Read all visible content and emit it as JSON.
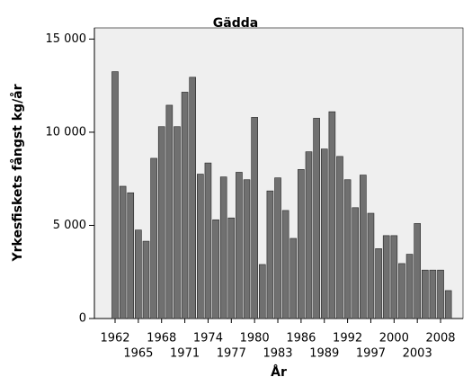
{
  "chart_data": {
    "type": "bar",
    "title": "Gädda",
    "x_label": "År",
    "y_label": "Yrkesfiskets fångst kg/år",
    "categories": [
      "1962",
      null,
      null,
      "1965",
      null,
      null,
      "1968",
      null,
      null,
      "1971",
      null,
      null,
      "1974",
      null,
      null,
      "1977",
      null,
      null,
      "1980",
      null,
      null,
      "1983",
      null,
      null,
      "1986",
      null,
      null,
      "1989",
      null,
      null,
      "1992",
      null,
      null,
      "1997",
      null,
      null,
      "2000",
      null,
      null,
      "2003",
      null,
      null,
      "2008",
      null
    ],
    "values": [
      13250,
      7100,
      6750,
      4750,
      4150,
      8600,
      10300,
      11450,
      10300,
      12150,
      12950,
      7750,
      8350,
      5300,
      7600,
      5400,
      7850,
      7450,
      10800,
      2900,
      6850,
      7550,
      5800,
      4300,
      8000,
      8950,
      10750,
      9100,
      11100,
      8700,
      7450,
      5950,
      7700,
      5650,
      3750,
      4450,
      4450,
      2950,
      3450,
      5100,
      2600,
      2600,
      2600,
      1500
    ],
    "color": "#707070",
    "ylim": [
      0,
      15600
    ],
    "yticks": [
      0,
      {
        "value": 5000,
        "label": "5 000"
      },
      {
        "value": 10000,
        "label": "10 000"
      },
      {
        "value": 15000,
        "label": "15 000"
      }
    ]
  }
}
